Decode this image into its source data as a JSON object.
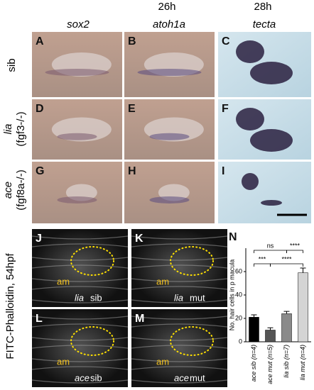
{
  "figure": {
    "time_headers": [
      "26h",
      "28h"
    ],
    "gene_headers": [
      "sox2",
      "atoh1a",
      "tecta"
    ],
    "row_labels": [
      [
        "sib"
      ],
      [
        "lia",
        "(fgf3-/-)"
      ],
      [
        "ace",
        "(fgf8a-/-)"
      ]
    ],
    "panel_letters": [
      "A",
      "B",
      "C",
      "D",
      "E",
      "F",
      "G",
      "H",
      "I"
    ],
    "stain_label": "FITC-Phalloidin, 54hpf",
    "lower_panels": [
      {
        "letter": "J",
        "region": "am",
        "gene": "lia",
        "genotype": "sib"
      },
      {
        "letter": "K",
        "region": "am",
        "gene": "lia",
        "genotype": "mut"
      },
      {
        "letter": "L",
        "region": "am",
        "gene": "ace",
        "genotype": "sib"
      },
      {
        "letter": "M",
        "region": "am",
        "gene": "ace",
        "genotype": "mut"
      }
    ]
  },
  "chart_data": {
    "type": "bar",
    "letter": "N",
    "y_label": "No. hair cells in p macula",
    "categories": [
      "ace sib (n=4)",
      "ace mut (n=5)",
      "lia sib (n=7)",
      "lia mut (n=4)"
    ],
    "values": [
      21,
      10,
      24,
      59
    ],
    "errors": [
      2,
      2,
      2,
      4
    ],
    "colors": [
      "#000000",
      "#555555",
      "#8a8a8a",
      "#d4d4d4"
    ],
    "ylim": [
      0,
      80
    ],
    "yticks": [
      0,
      20,
      40,
      60
    ],
    "annotations": [
      "ns",
      "****",
      "***",
      "****"
    ]
  }
}
